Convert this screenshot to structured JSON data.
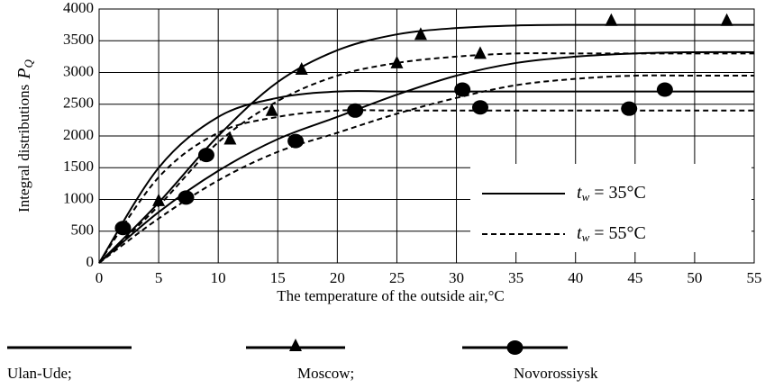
{
  "chart_data": {
    "type": "line",
    "y_label": "Integral distributions",
    "y_label_symbol": "P",
    "y_label_sub": "Q",
    "x_label": "The temperature of the outside air,°C",
    "x": [
      0,
      5,
      10,
      15,
      20,
      25,
      30,
      35,
      40,
      45,
      50,
      55
    ],
    "xlim": [
      0,
      55
    ],
    "xticks": [
      0,
      5,
      10,
      15,
      20,
      25,
      30,
      35,
      40,
      45,
      50,
      55
    ],
    "ylim": [
      0,
      4000
    ],
    "yticks": [
      0,
      500,
      1000,
      1500,
      2000,
      2500,
      3000,
      3500,
      4000
    ],
    "grid": true,
    "color": "#000000",
    "series": [
      {
        "style": "solid",
        "values": [
          0,
          950,
          2000,
          2850,
          3350,
          3600,
          3700,
          3740,
          3750,
          3750,
          3750,
          3750
        ]
      },
      {
        "style": "solid",
        "values": [
          0,
          1500,
          2300,
          2600,
          2700,
          2700,
          2700,
          2700,
          2700,
          2700,
          2700,
          2700
        ]
      },
      {
        "style": "solid",
        "values": [
          0,
          800,
          1450,
          1950,
          2300,
          2650,
          2950,
          3150,
          3250,
          3300,
          3320,
          3320
        ]
      },
      {
        "style": "dashed",
        "values": [
          0,
          900,
          1900,
          2550,
          2950,
          3150,
          3250,
          3300,
          3300,
          3300,
          3300,
          3300
        ]
      },
      {
        "style": "dashed",
        "values": [
          0,
          1350,
          2050,
          2300,
          2400,
          2400,
          2400,
          2400,
          2400,
          2400,
          2400,
          2400
        ]
      },
      {
        "style": "dashed",
        "values": [
          0,
          700,
          1300,
          1750,
          2050,
          2350,
          2600,
          2800,
          2900,
          2950,
          2950,
          2950
        ]
      }
    ],
    "markers": [
      {
        "shape": "triangle",
        "x": [
          2,
          5,
          11,
          14.5,
          17,
          25,
          27,
          32,
          43,
          52.7
        ],
        "y": [
          550,
          980,
          1950,
          2400,
          3050,
          3150,
          3600,
          3300,
          3820,
          3820
        ]
      },
      {
        "shape": "circle",
        "x": [
          2,
          7.3,
          9,
          16.5,
          21.5,
          30.5,
          32,
          44.5,
          47.5
        ],
        "y": [
          550,
          1030,
          1700,
          1920,
          2400,
          2730,
          2450,
          2430,
          2730
        ]
      }
    ],
    "style_legend": [
      {
        "symbol": "t",
        "sub": "w",
        "text": " = 35°C",
        "style": "solid"
      },
      {
        "symbol": "t",
        "sub": "w",
        "text": " = 55°C",
        "style": "dashed"
      }
    ],
    "city_legend": [
      {
        "name": "Ulan-Ude;",
        "marker": "none"
      },
      {
        "name": "Moscow;",
        "marker": "triangle"
      },
      {
        "name": "Novorossiysk",
        "marker": "circle"
      }
    ]
  }
}
